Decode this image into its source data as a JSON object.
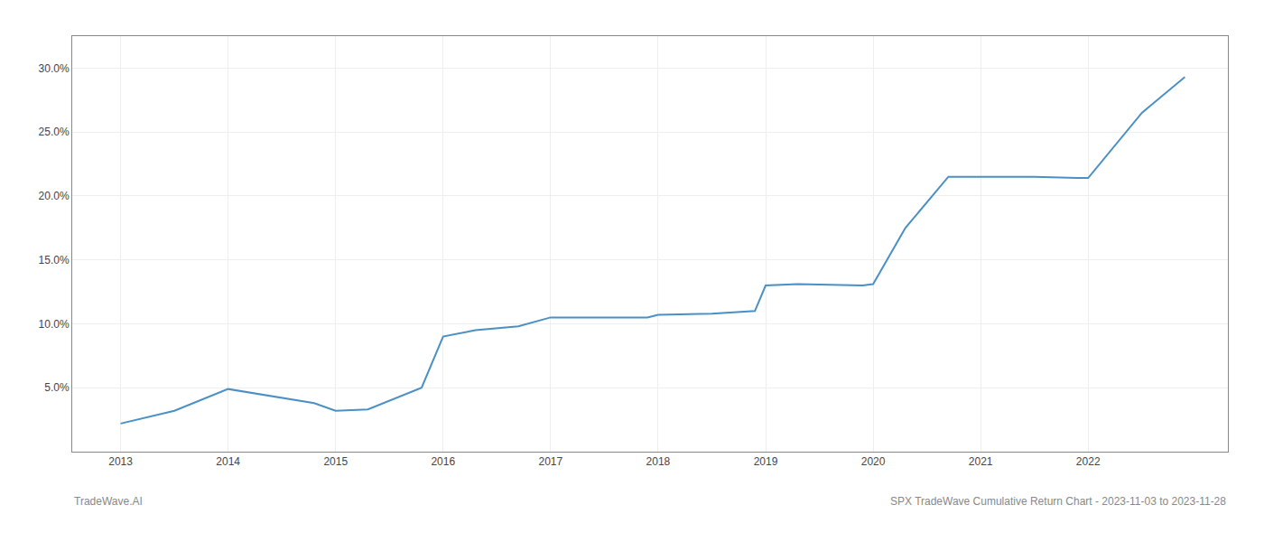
{
  "chart_data": {
    "type": "line",
    "x": [
      2013.0,
      2013.5,
      2014.0,
      2014.8,
      2015.0,
      2015.3,
      2015.8,
      2016.0,
      2016.3,
      2016.7,
      2017.0,
      2017.5,
      2017.9,
      2018.0,
      2018.5,
      2018.9,
      2019.0,
      2019.3,
      2019.7,
      2019.9,
      2020.0,
      2020.3,
      2020.7,
      2020.9,
      2021.0,
      2021.5,
      2021.9,
      2022.0,
      2022.5,
      2022.9
    ],
    "values": [
      2.2,
      3.2,
      4.9,
      3.8,
      3.2,
      3.3,
      5.0,
      9.0,
      9.5,
      9.8,
      10.5,
      10.5,
      10.5,
      10.7,
      10.8,
      11.0,
      13.0,
      13.1,
      13.0,
      13.0,
      13.1,
      17.5,
      21.5,
      21.5,
      21.5,
      21.5,
      21.4,
      21.4,
      26.5,
      29.3
    ],
    "color": "#4a90c4",
    "xlim": [
      2012.55,
      2023.3
    ],
    "xticks": [
      2013,
      2014,
      2015,
      2016,
      2017,
      2018,
      2019,
      2020,
      2021,
      2022
    ],
    "ylim": [
      0.0,
      32.5
    ],
    "yticks": [
      {
        "value": 5.0,
        "label": "5.0%"
      },
      {
        "value": 10.0,
        "label": "10.0%"
      },
      {
        "value": 15.0,
        "label": "15.0%"
      },
      {
        "value": 20.0,
        "label": "20.0%"
      },
      {
        "value": 25.0,
        "label": "25.0%"
      },
      {
        "value": 30.0,
        "label": "30.0%"
      }
    ],
    "grid": true,
    "annotations": [
      "TradeWave.AI",
      "SPX TradeWave Cumulative Return Chart - 2023-11-03 to 2023-11-28"
    ]
  }
}
